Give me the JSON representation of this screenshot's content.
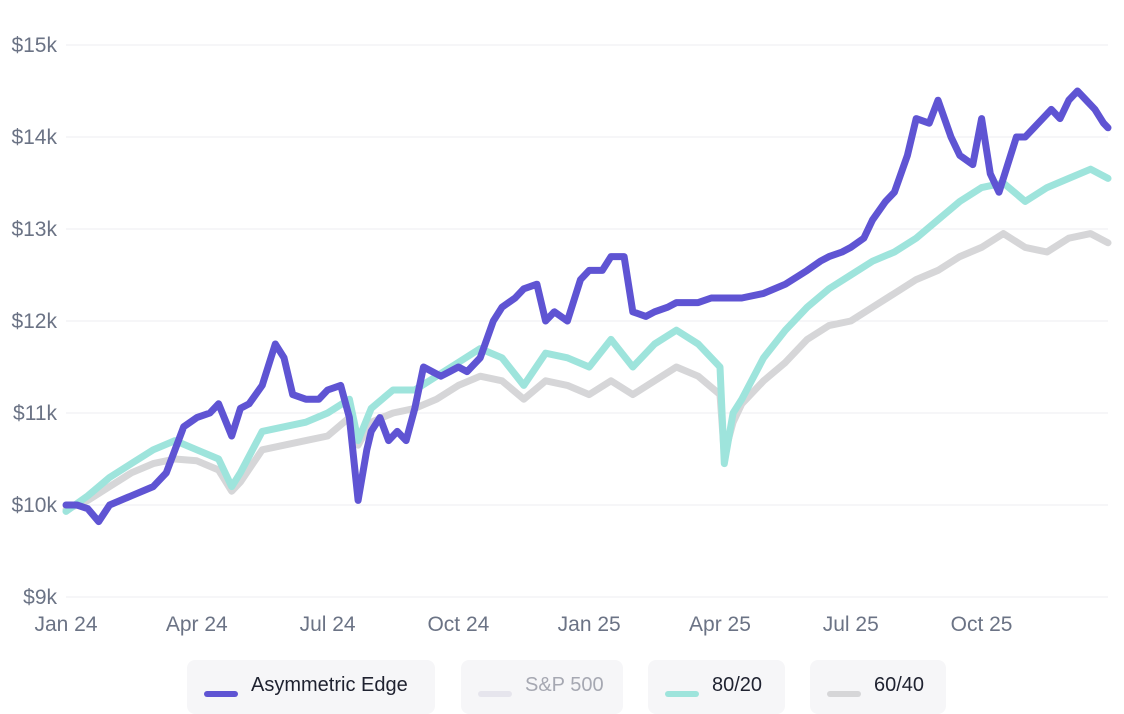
{
  "chart_data": {
    "type": "line",
    "title": "",
    "xlabel": "",
    "ylabel": "",
    "ylim": [
      9000,
      15000
    ],
    "y_ticks": [
      "$9k",
      "$10k",
      "$11k",
      "$12k",
      "$13k",
      "$14k",
      "$15k"
    ],
    "y_tick_values": [
      9000,
      10000,
      11000,
      12000,
      13000,
      14000,
      15000
    ],
    "x_ticks": [
      "Jan 24",
      "Apr 24",
      "Jul 24",
      "Oct 24",
      "Jan 25",
      "Apr 25",
      "Jul 25",
      "Oct 25"
    ],
    "x_tick_values": [
      0,
      3,
      6,
      9,
      12,
      15,
      18,
      21
    ],
    "xlim": [
      0,
      23.9
    ],
    "grid": true,
    "legend_position": "bottom",
    "series": [
      {
        "name": "60/40",
        "color": "#d6d6d8",
        "visible": true,
        "x": [
          0,
          0.5,
          1,
          1.5,
          2,
          2.5,
          3,
          3.5,
          3.8,
          4,
          4.5,
          5,
          5.5,
          6,
          6.5,
          6.7,
          7,
          7.5,
          8,
          8.5,
          9,
          9.5,
          10,
          10.5,
          11,
          11.5,
          12,
          12.5,
          13,
          13.5,
          14,
          14.5,
          15,
          15.1,
          15.3,
          15.5,
          16,
          16.5,
          17,
          17.5,
          18,
          18.5,
          19,
          19.5,
          20,
          20.5,
          21,
          21.5,
          22,
          22.5,
          23,
          23.5,
          23.9
        ],
        "values": [
          9950,
          10050,
          10200,
          10350,
          10450,
          10500,
          10480,
          10380,
          10150,
          10250,
          10600,
          10650,
          10700,
          10750,
          10950,
          10650,
          10900,
          11000,
          11050,
          11150,
          11300,
          11400,
          11350,
          11150,
          11350,
          11300,
          11200,
          11350,
          11200,
          11350,
          11500,
          11400,
          11200,
          10550,
          10900,
          11100,
          11350,
          11550,
          11800,
          11950,
          12000,
          12150,
          12300,
          12450,
          12550,
          12700,
          12800,
          12950,
          12800,
          12750,
          12900,
          12950,
          12850
        ]
      },
      {
        "name": "S&P 500",
        "color": "#e6e5ed",
        "visible": false,
        "x": [],
        "values": []
      },
      {
        "name": "80/20",
        "color": "#9ee4dc",
        "visible": true,
        "x": [
          0,
          0.5,
          1,
          1.5,
          2,
          2.5,
          3,
          3.5,
          3.8,
          4,
          4.5,
          5,
          5.5,
          6,
          6.5,
          6.7,
          7,
          7.5,
          8,
          8.5,
          9,
          9.5,
          10,
          10.5,
          11,
          11.5,
          12,
          12.5,
          13,
          13.5,
          14,
          14.5,
          15,
          15.1,
          15.3,
          15.5,
          16,
          16.5,
          17,
          17.5,
          18,
          18.5,
          19,
          19.5,
          20,
          20.5,
          21,
          21.5,
          22,
          22.5,
          23,
          23.5,
          23.9
        ],
        "values": [
          9930,
          10100,
          10300,
          10450,
          10600,
          10700,
          10600,
          10500,
          10200,
          10350,
          10800,
          10850,
          10900,
          11000,
          11150,
          10700,
          11050,
          11250,
          11250,
          11400,
          11550,
          11700,
          11600,
          11300,
          11650,
          11600,
          11500,
          11800,
          11500,
          11750,
          11900,
          11750,
          11500,
          10450,
          11000,
          11150,
          11600,
          11900,
          12150,
          12350,
          12500,
          12650,
          12750,
          12900,
          13100,
          13300,
          13450,
          13500,
          13300,
          13450,
          13550,
          13650,
          13550
        ]
      },
      {
        "name": "Asymmetric Edge",
        "color": "#5f54d3",
        "visible": true,
        "x": [
          0,
          0.25,
          0.5,
          0.75,
          1,
          1.5,
          2,
          2.3,
          2.5,
          2.7,
          3,
          3.3,
          3.5,
          3.8,
          4,
          4.2,
          4.5,
          4.8,
          5,
          5.2,
          5.5,
          5.8,
          6,
          6.3,
          6.5,
          6.7,
          6.9,
          7,
          7.2,
          7.4,
          7.6,
          7.8,
          8,
          8.2,
          8.4,
          8.6,
          8.8,
          9,
          9.2,
          9.5,
          9.8,
          10,
          10.3,
          10.5,
          10.8,
          11,
          11.2,
          11.5,
          11.8,
          12,
          12.3,
          12.5,
          12.8,
          13,
          13.3,
          13.5,
          13.8,
          14,
          14.2,
          14.5,
          14.8,
          15,
          15.5,
          16,
          16.5,
          17,
          17.3,
          17.5,
          17.8,
          18,
          18.3,
          18.5,
          18.8,
          19,
          19.3,
          19.5,
          19.8,
          20,
          20.3,
          20.5,
          20.8,
          21,
          21.2,
          21.4,
          21.6,
          21.8,
          22,
          22.2,
          22.4,
          22.6,
          22.8,
          23,
          23.2,
          23.4,
          23.6,
          23.8,
          23.9
        ],
        "values": [
          10000,
          10000,
          9960,
          9820,
          10000,
          10100,
          10200,
          10350,
          10600,
          10850,
          10950,
          11000,
          11100,
          10750,
          11050,
          11100,
          11300,
          11750,
          11600,
          11200,
          11150,
          11150,
          11250,
          11300,
          10950,
          10050,
          10600,
          10800,
          10950,
          10700,
          10800,
          10700,
          11050,
          11500,
          11450,
          11400,
          11450,
          11500,
          11450,
          11600,
          12000,
          12150,
          12250,
          12350,
          12400,
          12000,
          12100,
          12000,
          12450,
          12550,
          12550,
          12700,
          12700,
          12100,
          12050,
          12100,
          12150,
          12200,
          12200,
          12200,
          12250,
          12250,
          12250,
          12300,
          12400,
          12550,
          12650,
          12700,
          12750,
          12800,
          12900,
          13100,
          13300,
          13400,
          13800,
          14200,
          14150,
          14400,
          14000,
          13800,
          13700,
          14200,
          13600,
          13400,
          13700,
          14000,
          14000,
          14100,
          14200,
          14300,
          14200,
          14400,
          14500,
          14400,
          14300,
          14150,
          14100
        ]
      }
    ]
  },
  "legend": {
    "items": [
      {
        "label": "Asymmetric Edge",
        "color": "#5f54d3",
        "active": true
      },
      {
        "label": "S&P 500",
        "color": "#e6e5ed",
        "active": false
      },
      {
        "label": "80/20",
        "color": "#9ee4dc",
        "active": true
      },
      {
        "label": "60/40",
        "color": "#d6d6d8",
        "active": true
      }
    ]
  }
}
